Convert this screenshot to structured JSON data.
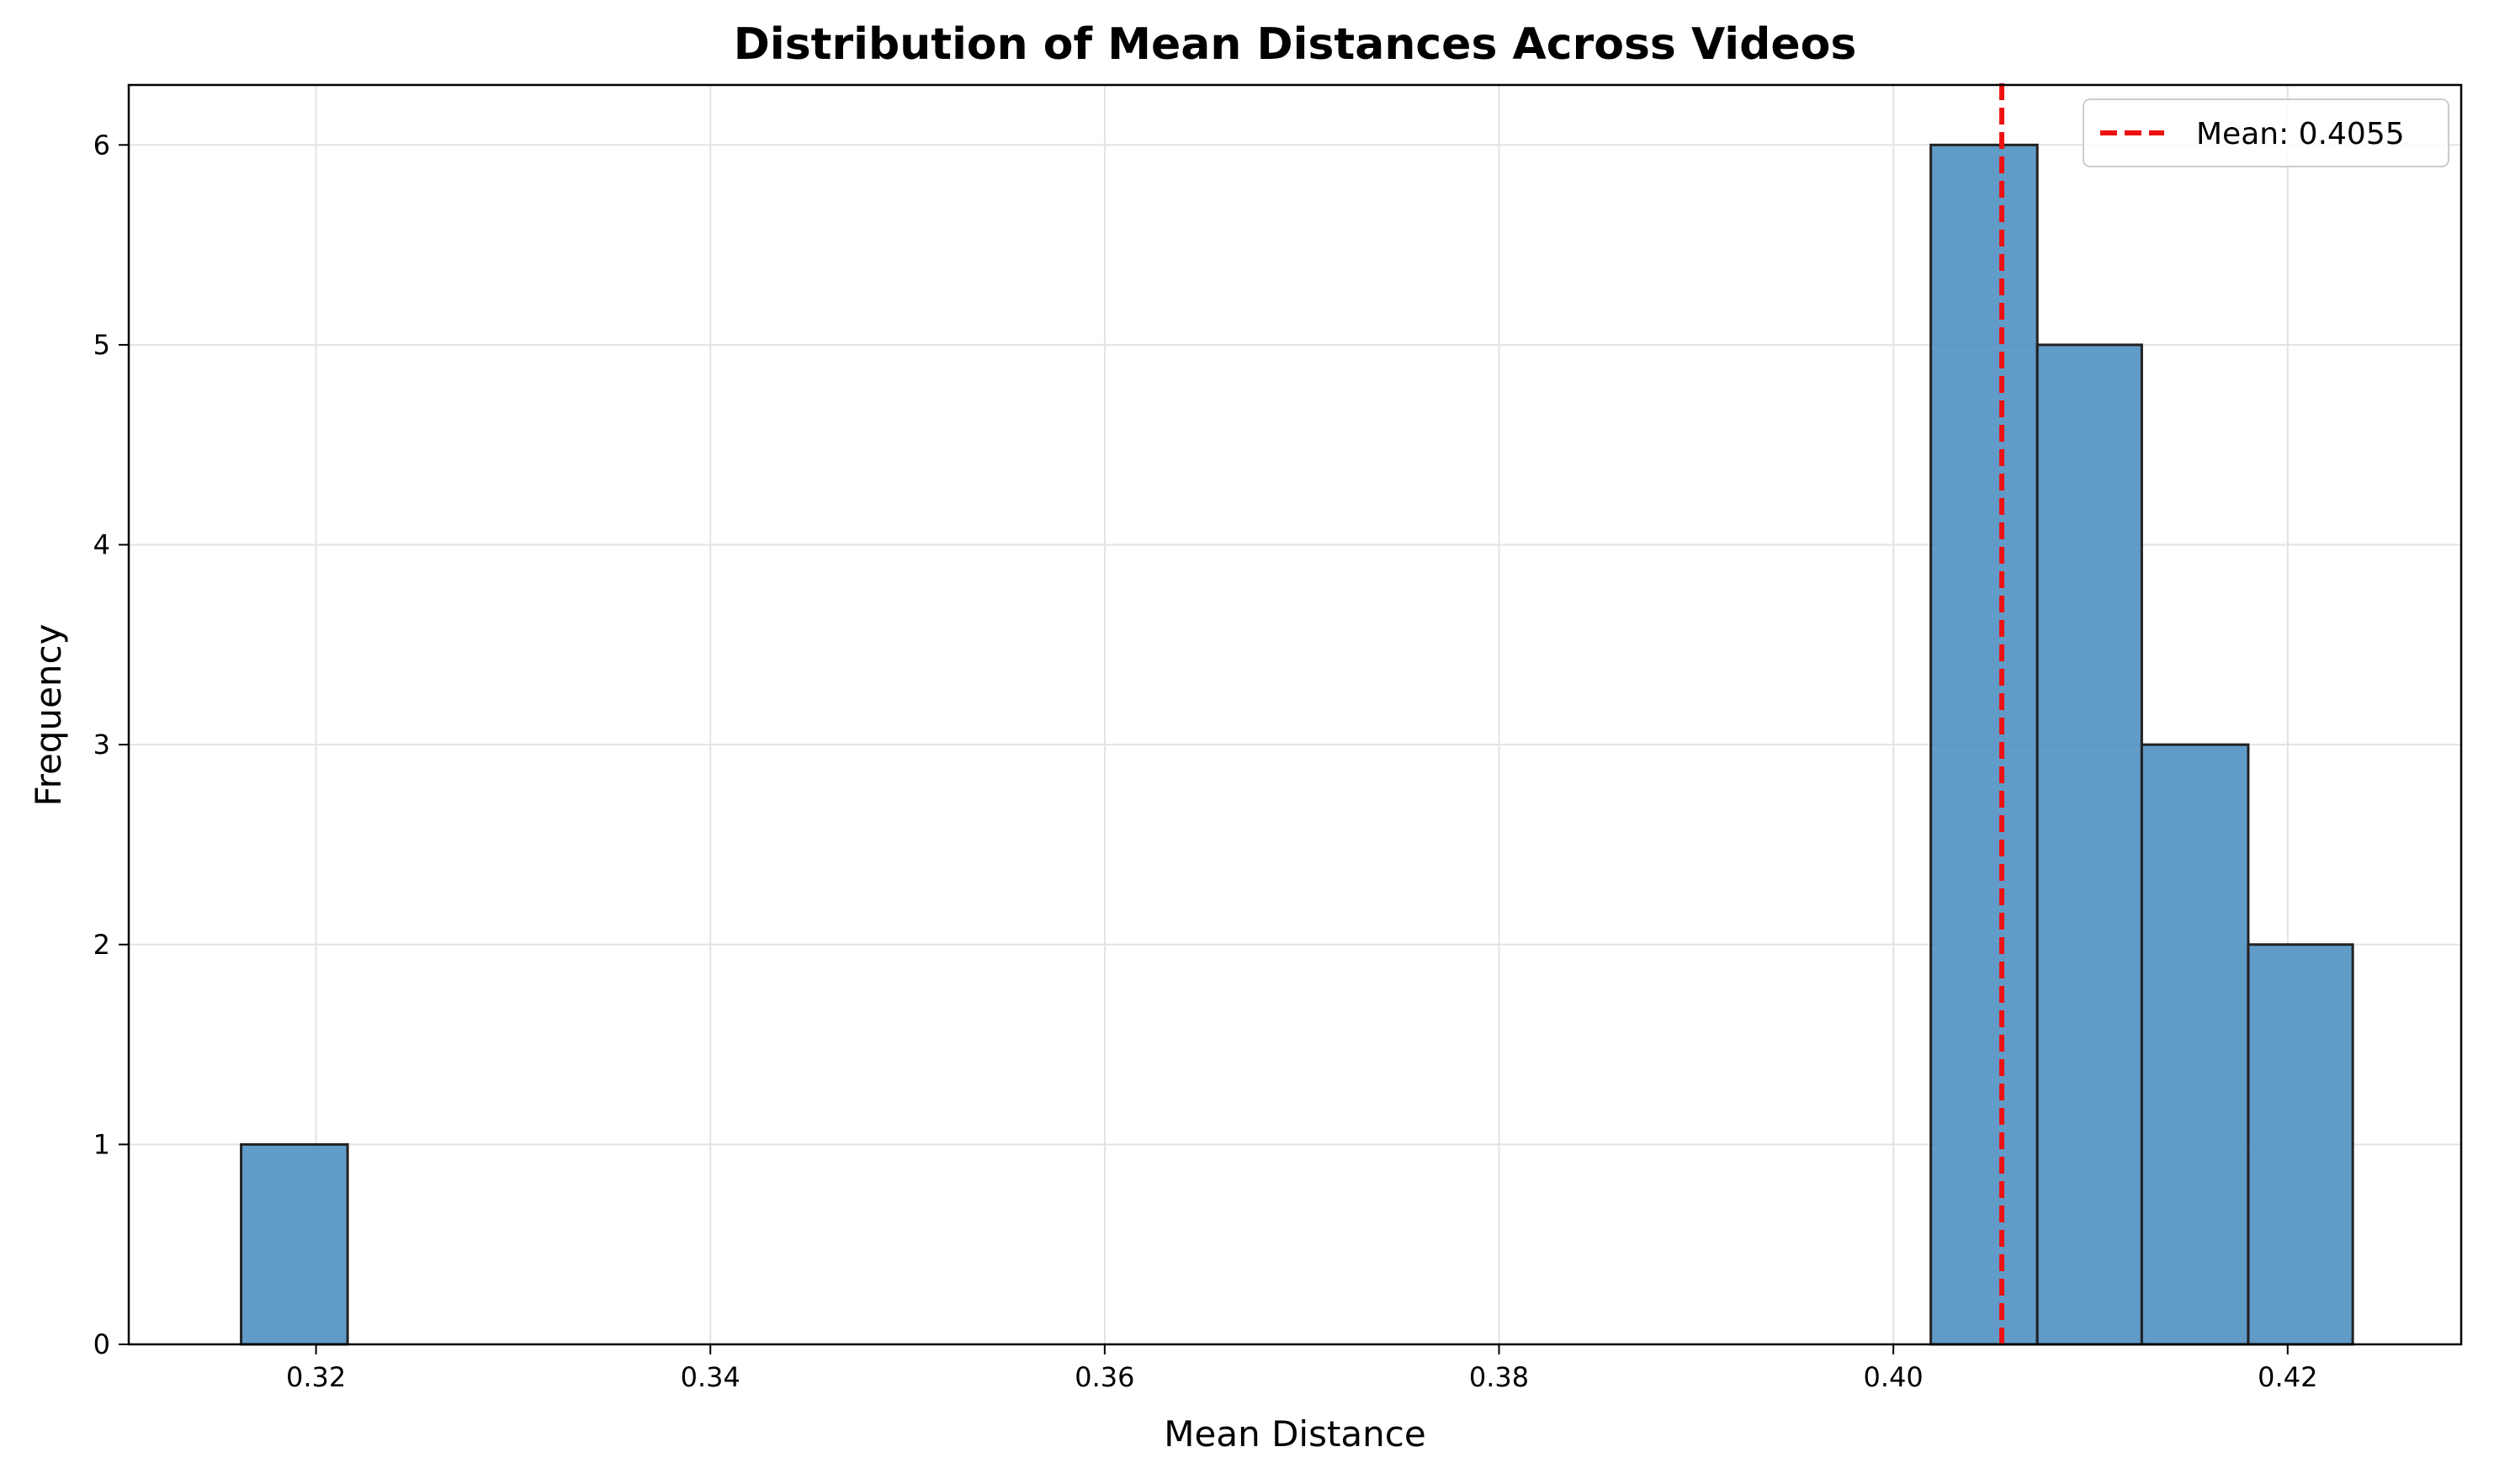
{
  "chart_data": {
    "type": "bar",
    "title": "Distribution of Mean Distances Across Videos",
    "xlabel": "Mean Distance",
    "ylabel": "Frequency",
    "xlim": [
      0.3105,
      0.4288
    ],
    "ylim": [
      0,
      6.3
    ],
    "x_ticks": [
      0.32,
      0.34,
      0.36,
      0.38,
      0.4,
      0.42
    ],
    "x_tick_labels": [
      "0.32",
      "0.34",
      "0.36",
      "0.38",
      "0.40",
      "0.42"
    ],
    "y_ticks": [
      0,
      1,
      2,
      3,
      4,
      5,
      6
    ],
    "y_tick_labels": [
      "0",
      "1",
      "2",
      "3",
      "4",
      "5",
      "6"
    ],
    "grid": true,
    "bins": [
      {
        "x0": 0.3162,
        "x1": 0.3216,
        "count": 1
      },
      {
        "x0": 0.4019,
        "x1": 0.4073,
        "count": 6
      },
      {
        "x0": 0.4073,
        "x1": 0.4126,
        "count": 5
      },
      {
        "x0": 0.4126,
        "x1": 0.418,
        "count": 3
      },
      {
        "x0": 0.418,
        "x1": 0.4233,
        "count": 2
      }
    ],
    "bar_color": "#4a8cc0",
    "bar_edge_color": "#222222",
    "mean_line": {
      "value": 0.4055,
      "color": "#ee1111",
      "label": "Mean: 0.4055"
    },
    "legend_position": "top-right"
  }
}
